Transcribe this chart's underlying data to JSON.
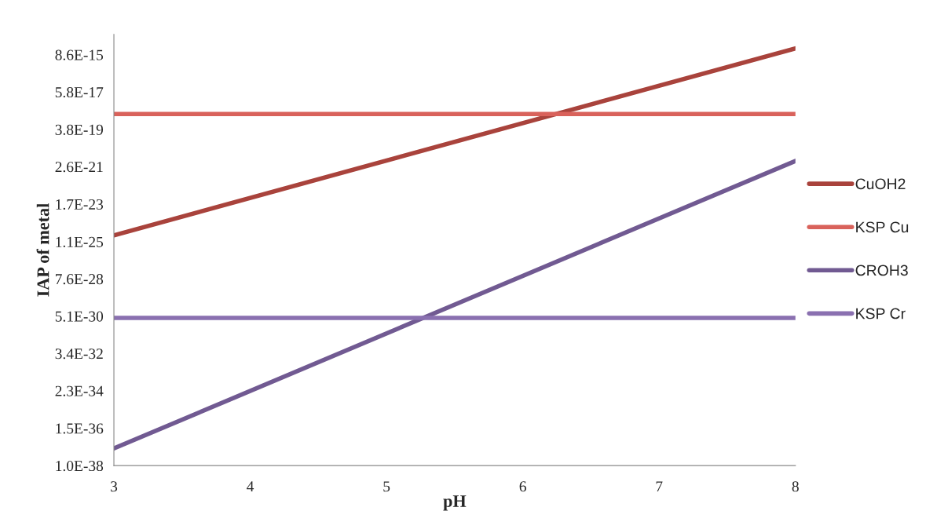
{
  "chart_data": {
    "type": "line",
    "xlabel": "pH",
    "ylabel": "IAP of metal",
    "x": [
      3,
      8
    ],
    "series": [
      {
        "name": "CuOH2",
        "color": "#a9433c",
        "values": [
          2.6e-25,
          2e-14
        ]
      },
      {
        "name": "KSP Cu",
        "color": "#d9625b",
        "values": [
          3e-18,
          3e-18
        ]
      },
      {
        "name": "CROH3",
        "color": "#715a92",
        "values": [
          1e-37,
          5.6e-21
        ]
      },
      {
        "name": "KSP Cr",
        "color": "#8a70b0",
        "values": [
          4e-30,
          4e-30
        ]
      }
    ],
    "log": "y",
    "xlim": [
      3,
      8
    ],
    "xticks": [
      3,
      4,
      5,
      6,
      7,
      8
    ],
    "ylim": [
      1e-38,
      1.3e-13
    ],
    "yticks": [
      {
        "value": 1e-38,
        "label": "1.0E-38"
      },
      {
        "value": 1.5e-36,
        "label": "1.5E-36"
      },
      {
        "value": 2.3e-34,
        "label": "2.3E-34"
      },
      {
        "value": 3.4e-32,
        "label": "3.4E-32"
      },
      {
        "value": 5.1e-30,
        "label": "5.1E-30"
      },
      {
        "value": 7.6e-28,
        "label": "7.6E-28"
      },
      {
        "value": 1.1e-25,
        "label": "1.1E-25"
      },
      {
        "value": 1.7e-23,
        "label": "1.7E-23"
      },
      {
        "value": 2.6e-21,
        "label": "2.6E-21"
      },
      {
        "value": 3.8e-19,
        "label": "3.8E-19"
      },
      {
        "value": 5.8e-17,
        "label": "5.8E-17"
      },
      {
        "value": 8.6e-15,
        "label": "8.6E-15"
      }
    ],
    "grid": false,
    "legend": "right",
    "marker": "none",
    "line_style": "solid"
  }
}
